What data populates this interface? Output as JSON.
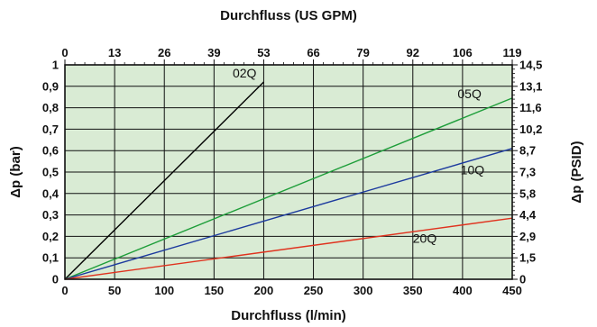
{
  "colors": {
    "plot_bg": "#d9ebd4",
    "grid": "#111111"
  },
  "chart_data": {
    "type": "line",
    "title": "",
    "xlabel": "Durchfluss (l/min)",
    "xlabel_top": "Durchfluss (US GPM)",
    "ylabel": "Δp (bar)",
    "ylabel_right": "Δp (PSID)",
    "xlim": [
      0,
      450
    ],
    "ylim": [
      0,
      1
    ],
    "grid": true,
    "x_ticks": [
      "0",
      "50",
      "100",
      "150",
      "200",
      "250",
      "300",
      "350",
      "400",
      "450"
    ],
    "x_top_ticks": [
      "0",
      "13",
      "26",
      "39",
      "53",
      "66",
      "79",
      "92",
      "106",
      "119"
    ],
    "y_ticks": [
      "0",
      "0,1",
      "0,2",
      "0,3",
      "0,4",
      "0,5",
      "0,6",
      "0,7",
      "0,8",
      "0,9",
      "1"
    ],
    "y_right_ticks": [
      "0",
      "1,5",
      "2,9",
      "4,4",
      "5,8",
      "7,3",
      "8,7",
      "10,2",
      "11,6",
      "13,1",
      "14,5"
    ],
    "series": [
      {
        "name": "02Q",
        "color": "#000000",
        "x": [
          0,
          200
        ],
        "y": [
          0,
          0.92
        ]
      },
      {
        "name": "05Q",
        "color": "#1e9e3a",
        "x": [
          0,
          450
        ],
        "y": [
          0,
          0.845
        ]
      },
      {
        "name": "10Q",
        "color": "#1c3a9e",
        "x": [
          0,
          450
        ],
        "y": [
          0,
          0.61
        ]
      },
      {
        "name": "20Q",
        "color": "#e0321e",
        "x": [
          0,
          450
        ],
        "y": [
          0,
          0.285
        ]
      }
    ]
  }
}
